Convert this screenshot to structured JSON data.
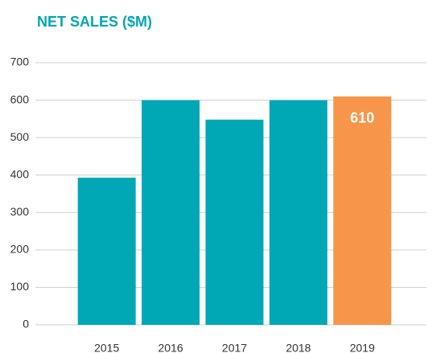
{
  "chart_data": {
    "type": "bar",
    "title": "NET SALES ($M)",
    "categories": [
      "2015",
      "2016",
      "2017",
      "2018",
      "2019"
    ],
    "values": [
      393,
      600,
      548,
      600,
      610
    ],
    "value_labels": [
      null,
      null,
      null,
      null,
      "610"
    ],
    "colors": [
      "#00a8b5",
      "#00a8b5",
      "#00a8b5",
      "#00a8b5",
      "#f7964a"
    ],
    "ylim": [
      0,
      700
    ],
    "yticks": [
      0,
      100,
      200,
      300,
      400,
      500,
      600,
      700
    ],
    "grid": true
  }
}
